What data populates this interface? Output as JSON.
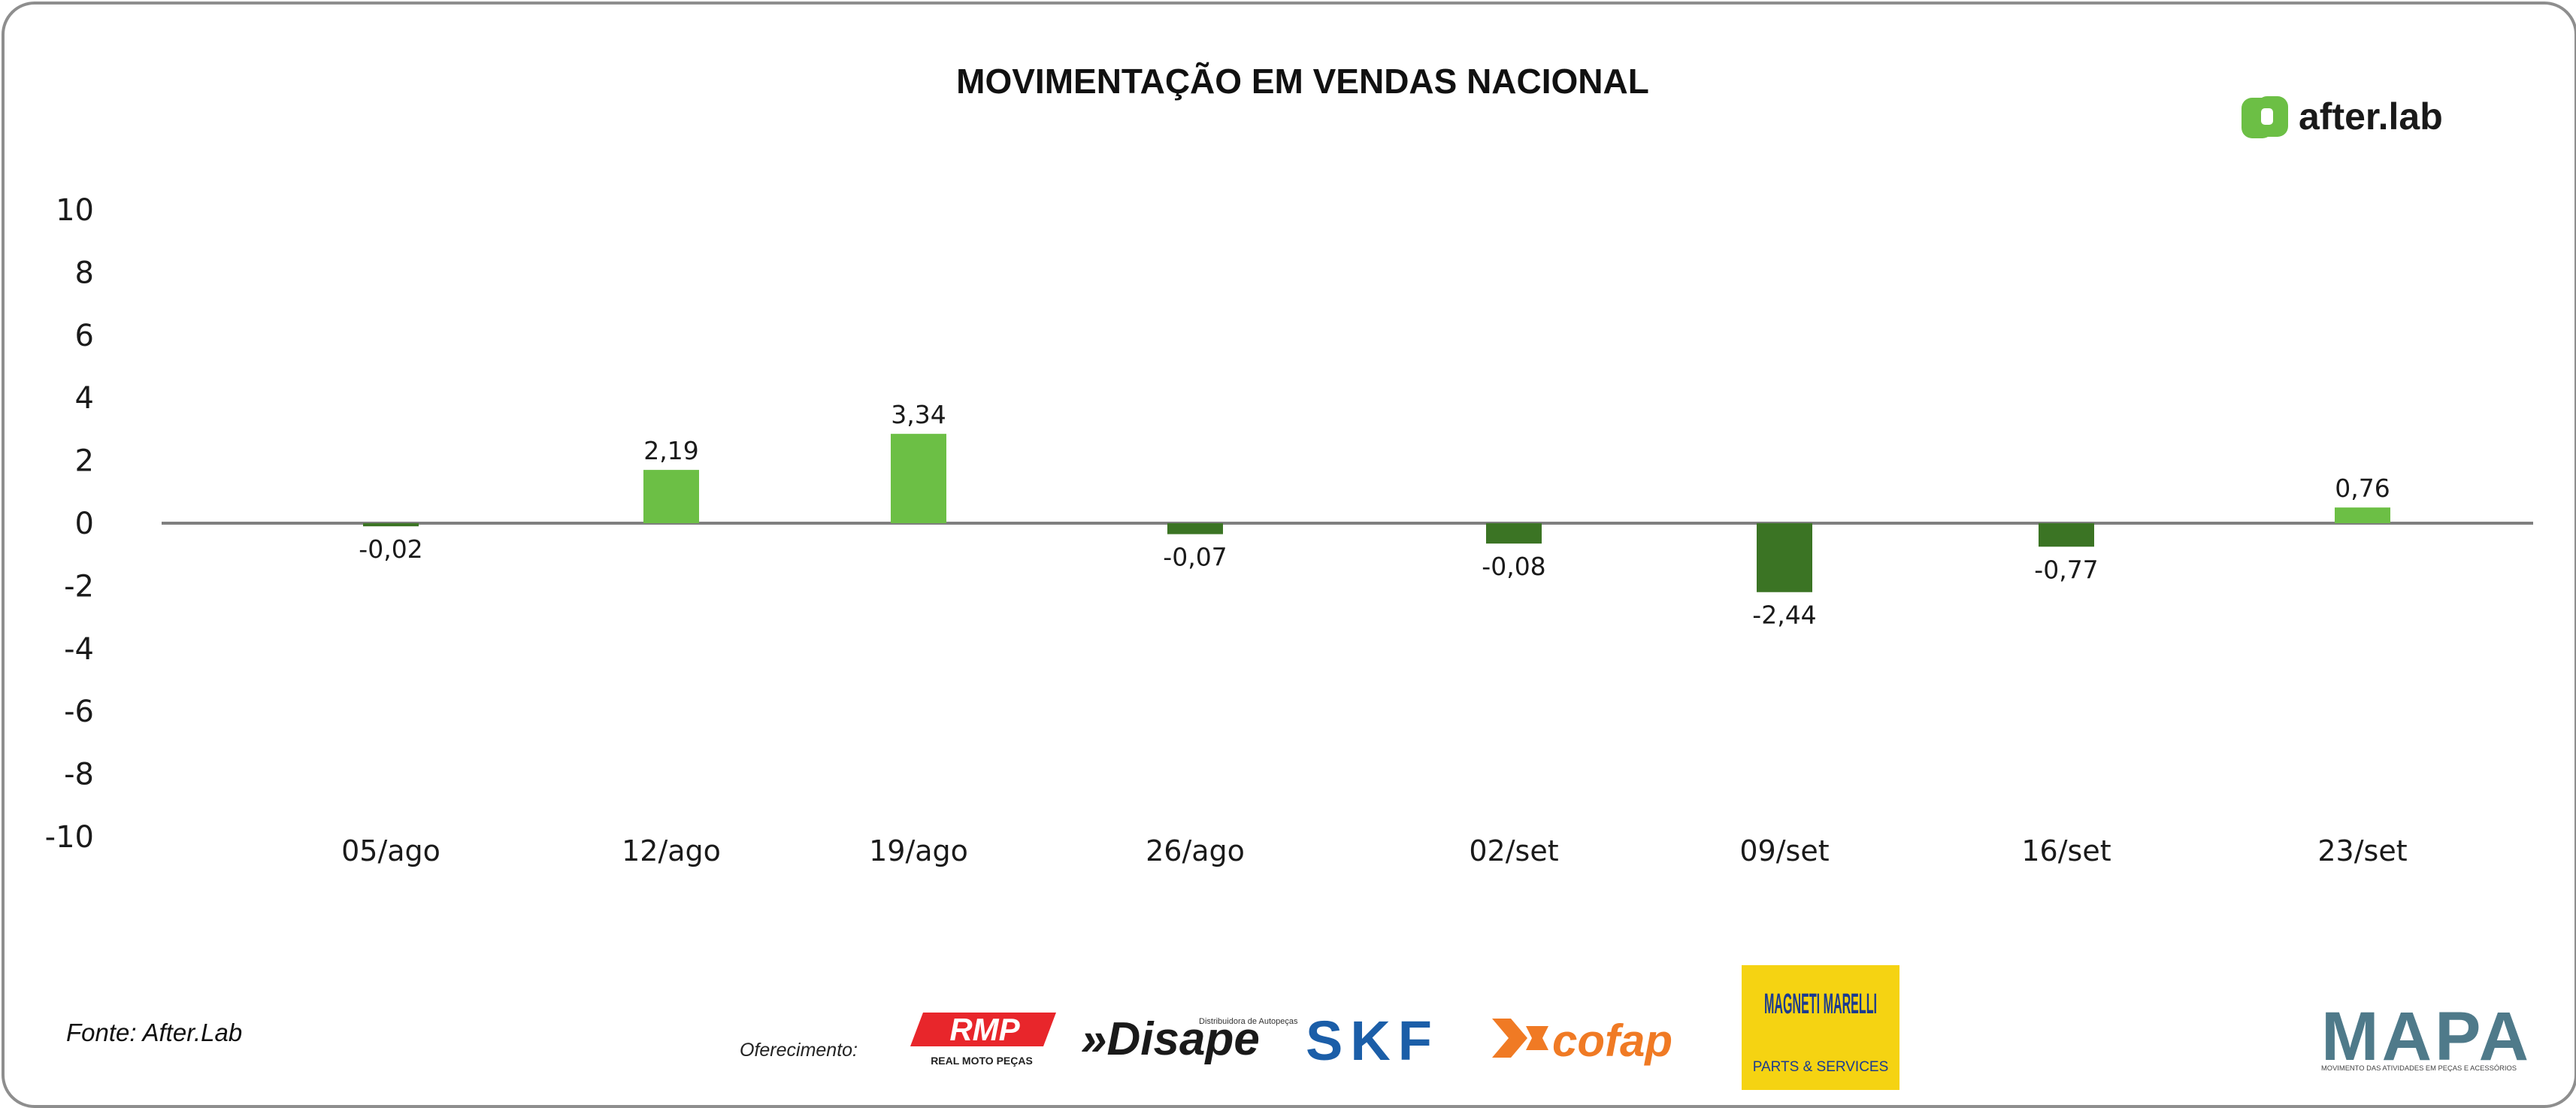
{
  "title": "MOVIMENTAÇÃO EM VENDAS NACIONAL",
  "brand": {
    "name": "after.lab",
    "color": "#6cbf45"
  },
  "source": "Fonte: After.Lab",
  "sponsors": {
    "label": "Oferecimento:",
    "logos": [
      {
        "name": "RMP",
        "subtitle": "REAL MOTO PEÇAS",
        "color": "#e8262b"
      },
      {
        "name": "Disape",
        "subtitle": "Distribuidora de Autopeças",
        "color": "#1a1a1a"
      },
      {
        "name": "SKF",
        "color": "#1b5ea8"
      },
      {
        "name": "cofap",
        "color": "#f07a24"
      },
      {
        "name": "MAGNETI MARELLI",
        "subtitle": "PARTS & SERVICES",
        "color": "#1b3b8f",
        "background": "#f5d312"
      }
    ]
  },
  "mapa": {
    "name": "MAPA",
    "subtitle": "MOVIMENTO DAS ATIVIDADES EM PEÇAS E ACESSÓRIOS"
  },
  "chart_data": {
    "type": "bar",
    "categories": [
      "05/ago",
      "12/ago",
      "19/ago",
      "26/ago",
      "02/set",
      "09/set",
      "16/set",
      "23/set"
    ],
    "values": [
      -0.02,
      2.19,
      3.34,
      -0.07,
      -0.08,
      -2.44,
      -0.77,
      0.76
    ],
    "data_labels": [
      "-0,02",
      "2,19",
      "3,34",
      "-0,07",
      "-0,08",
      "-2,44",
      "-0,77",
      "0,76"
    ],
    "bar_heights": [
      -0.1,
      1.7,
      2.85,
      -0.35,
      -0.65,
      -2.2,
      -0.75,
      0.5
    ],
    "ylim": [
      -10,
      10
    ],
    "yticks": [
      "10",
      "8",
      "6",
      "4",
      "2",
      "0",
      "-2",
      "-4",
      "-6",
      "-8",
      "-10"
    ],
    "colors": {
      "positive": "#6cbf45",
      "negative": "#3b7424",
      "axis": "#7f7f7f"
    },
    "grid": false,
    "legend": "none"
  }
}
